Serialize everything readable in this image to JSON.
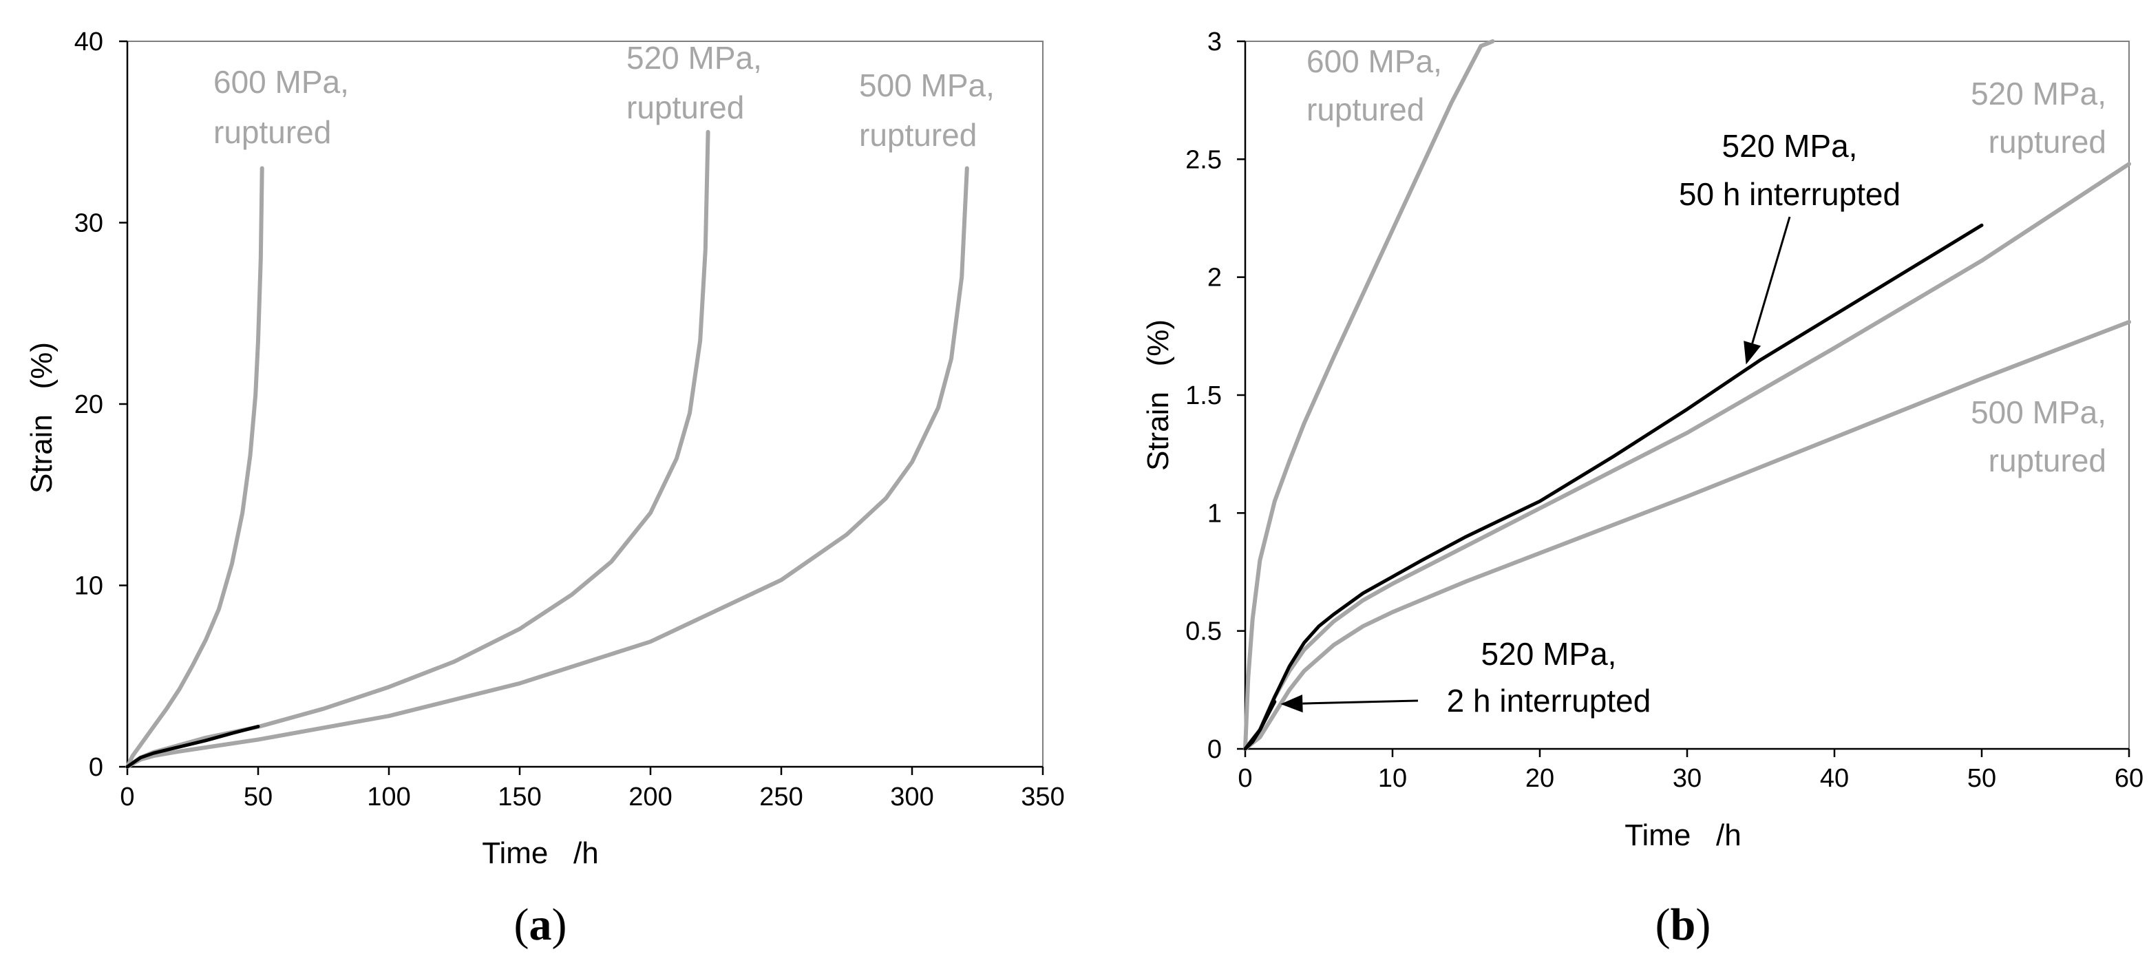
{
  "colors": {
    "ruptured": "#a6a6a6",
    "interrupted": "#000000",
    "frame": "#7f7f7f"
  },
  "chart_data": [
    {
      "type": "line",
      "panel_label": {
        "open": "(",
        "letter": "a",
        "close": ")"
      },
      "xlabel": "Time   /h",
      "ylabel": "Strain   (%)",
      "xlim": [
        0,
        350
      ],
      "ylim": [
        0,
        40
      ],
      "xticks": [
        0,
        50,
        100,
        150,
        200,
        250,
        300,
        350
      ],
      "yticks": [
        0,
        10,
        20,
        30,
        40
      ],
      "series": [
        {
          "name": "600 MPa, ruptured",
          "color": "#a6a6a6",
          "x": [
            0,
            2,
            5,
            10,
            15,
            20,
            25,
            30,
            35,
            40,
            44,
            47,
            49,
            50,
            51,
            51.5
          ],
          "y": [
            0,
            0.6,
            1.2,
            2.2,
            3.2,
            4.3,
            5.6,
            7.0,
            8.7,
            11.2,
            14.0,
            17.2,
            20.5,
            23.5,
            28.0,
            33.0
          ]
        },
        {
          "name": "520 MPa, ruptured",
          "color": "#a6a6a6",
          "x": [
            0,
            5,
            10,
            20,
            30,
            50,
            75,
            100,
            125,
            150,
            170,
            185,
            200,
            210,
            215,
            219,
            221,
            222
          ],
          "y": [
            0,
            0.5,
            0.8,
            1.2,
            1.6,
            2.2,
            3.2,
            4.4,
            5.8,
            7.6,
            9.5,
            11.3,
            14.0,
            17.0,
            19.5,
            23.5,
            28.5,
            35.0
          ]
        },
        {
          "name": "500 MPa, ruptured",
          "color": "#a6a6a6",
          "x": [
            0,
            5,
            10,
            20,
            50,
            100,
            150,
            200,
            250,
            275,
            290,
            300,
            310,
            315,
            319,
            321
          ],
          "y": [
            0,
            0.4,
            0.6,
            0.85,
            1.5,
            2.8,
            4.6,
            6.9,
            10.3,
            12.8,
            14.8,
            16.8,
            19.8,
            22.5,
            27.0,
            33.0
          ]
        },
        {
          "name": "520 MPa, 50 h interrupted",
          "color": "#000000",
          "x": [
            0,
            5,
            10,
            20,
            30,
            40,
            50
          ],
          "y": [
            0,
            0.5,
            0.75,
            1.1,
            1.45,
            1.85,
            2.22
          ]
        }
      ],
      "annotations": [
        {
          "lines": [
            "600 MPa,",
            "ruptured"
          ],
          "color": "#a6a6a6"
        },
        {
          "lines": [
            "520 MPa,",
            "ruptured"
          ],
          "color": "#a6a6a6"
        },
        {
          "lines": [
            "500 MPa,",
            "ruptured"
          ],
          "color": "#a6a6a6"
        }
      ]
    },
    {
      "type": "line",
      "panel_label": {
        "open": "(",
        "letter": "b",
        "close": ")"
      },
      "xlabel": "Time   /h",
      "ylabel": "Strain   (%)",
      "xlim": [
        0,
        60
      ],
      "ylim": [
        0,
        3
      ],
      "xticks": [
        0,
        10,
        20,
        30,
        40,
        50,
        60
      ],
      "yticks": [
        0,
        0.5,
        1,
        1.5,
        2,
        2.5,
        3
      ],
      "series": [
        {
          "name": "600 MPa, ruptured",
          "color": "#a6a6a6",
          "x": [
            0,
            0.2,
            0.5,
            1,
            2,
            3,
            4,
            6,
            8,
            10,
            12,
            14,
            16,
            16.8
          ],
          "y": [
            0,
            0.3,
            0.55,
            0.8,
            1.05,
            1.22,
            1.38,
            1.66,
            1.93,
            2.2,
            2.47,
            2.74,
            2.98,
            3.05
          ]
        },
        {
          "name": "520 MPa, ruptured",
          "color": "#a6a6a6",
          "x": [
            0,
            1,
            2,
            3,
            4,
            6,
            8,
            10,
            15,
            20,
            30,
            40,
            50,
            60
          ],
          "y": [
            0,
            0.08,
            0.22,
            0.33,
            0.42,
            0.54,
            0.63,
            0.7,
            0.86,
            1.02,
            1.34,
            1.7,
            2.07,
            2.48
          ]
        },
        {
          "name": "500 MPa, ruptured",
          "color": "#a6a6a6",
          "x": [
            0,
            1,
            2,
            3,
            4,
            6,
            8,
            10,
            15,
            20,
            30,
            40,
            50,
            60
          ],
          "y": [
            0,
            0.05,
            0.15,
            0.25,
            0.33,
            0.44,
            0.52,
            0.58,
            0.71,
            0.83,
            1.07,
            1.32,
            1.57,
            1.81
          ]
        },
        {
          "name": "520 MPa, 50 h interrupted",
          "color": "#000000",
          "x": [
            0,
            1,
            2,
            3,
            4,
            5,
            6,
            8,
            10,
            12,
            15,
            20,
            25,
            30,
            35,
            40,
            45,
            50
          ],
          "y": [
            0,
            0.08,
            0.22,
            0.35,
            0.45,
            0.52,
            0.57,
            0.66,
            0.73,
            0.8,
            0.9,
            1.05,
            1.24,
            1.44,
            1.65,
            1.84,
            2.03,
            2.22
          ]
        },
        {
          "name": "520 MPa, 2 h interrupted",
          "color": "#000000",
          "x": [
            0,
            0.5,
            1,
            1.5,
            2
          ],
          "y": [
            0,
            0.03,
            0.08,
            0.14,
            0.2
          ]
        }
      ],
      "annotations": [
        {
          "lines": [
            "600 MPa,",
            "ruptured"
          ],
          "color": "#a6a6a6"
        },
        {
          "lines": [
            "520 MPa,",
            "ruptured"
          ],
          "color": "#a6a6a6"
        },
        {
          "lines": [
            "500 MPa,",
            "ruptured"
          ],
          "color": "#a6a6a6"
        },
        {
          "lines": [
            "520 MPa,",
            "50 h interrupted"
          ],
          "color": "#000000",
          "arrow_to": {
            "x": 34,
            "y": 1.63
          }
        },
        {
          "lines": [
            "520 MPa,",
            "2 h interrupted"
          ],
          "color": "#000000",
          "arrow_to": {
            "x": 2.4,
            "y": 0.19
          }
        }
      ]
    }
  ]
}
